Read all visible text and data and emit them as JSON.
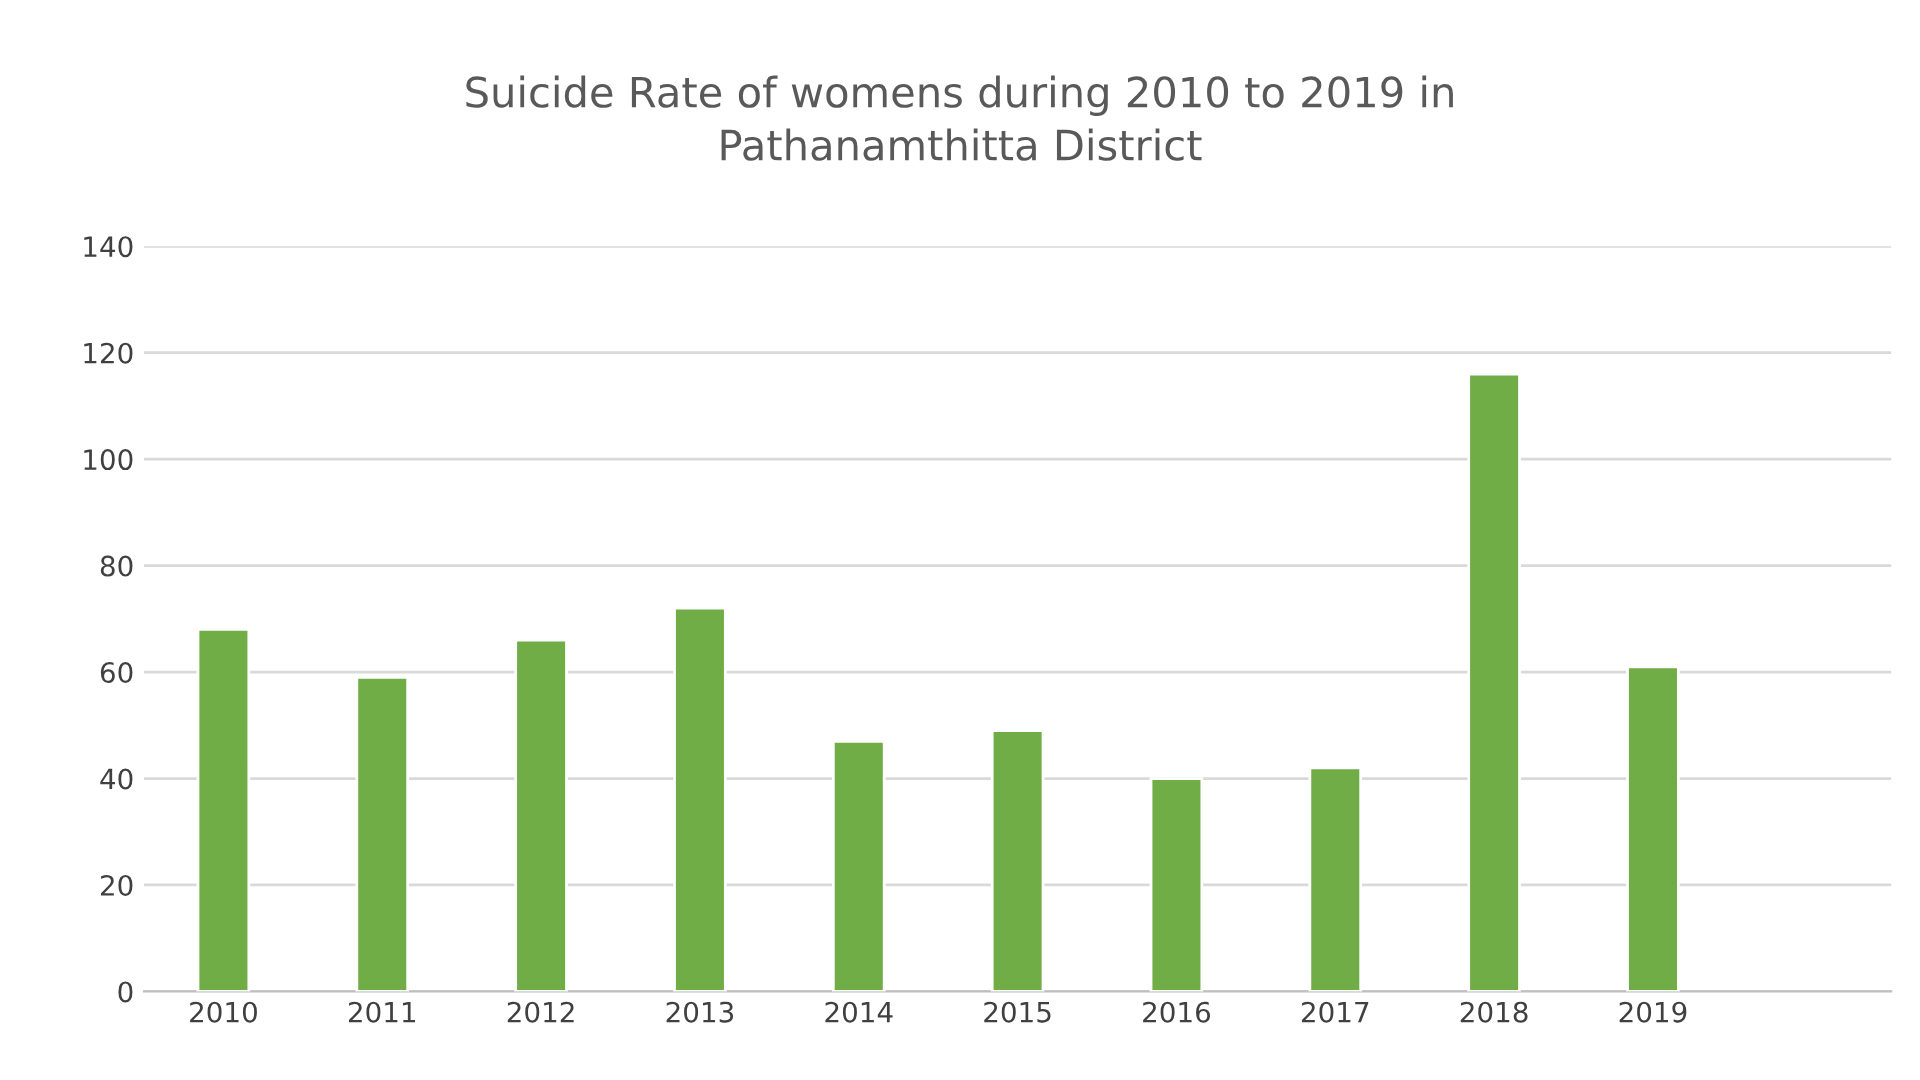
{
  "chart_data": {
    "type": "bar",
    "title": "Suicide Rate of womens during 2010 to 2019 in\nPathanamthitta District",
    "categories": [
      "2010",
      "2011",
      "2012",
      "2013",
      "2014",
      "2015",
      "2016",
      "2017",
      "2018",
      "2019",
      null
    ],
    "values": [
      68,
      59,
      66,
      72,
      47,
      49,
      40,
      42,
      116,
      61,
      null
    ],
    "color": "#70ad47",
    "ylim": [
      0,
      140
    ],
    "yticks": [
      0,
      20,
      40,
      60,
      80,
      100,
      120,
      140
    ],
    "grid": "y"
  }
}
